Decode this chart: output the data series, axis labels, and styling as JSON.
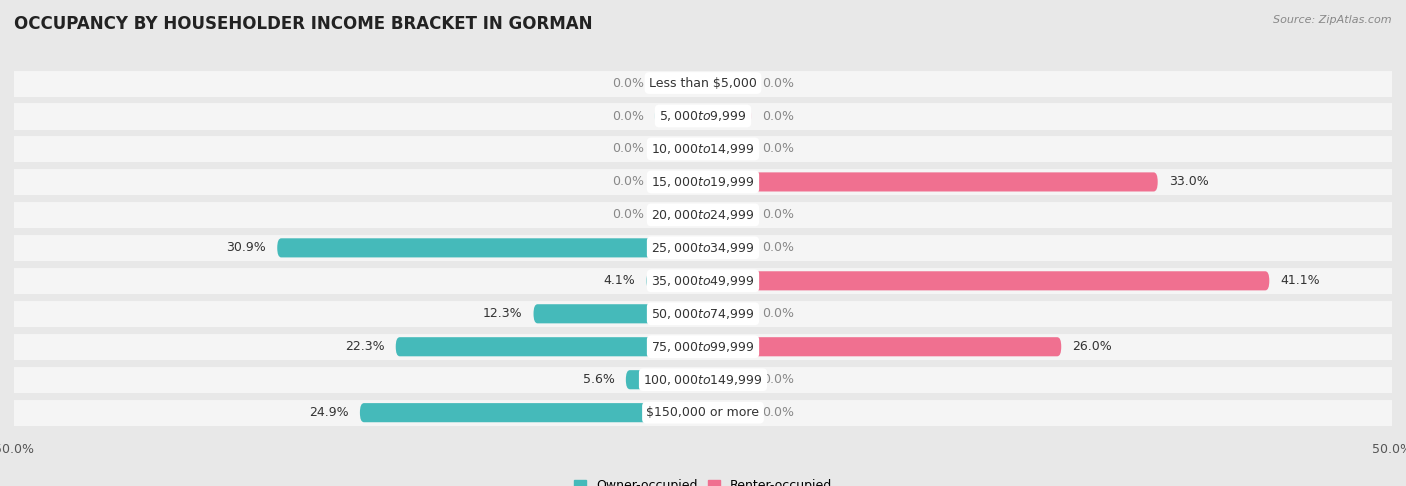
{
  "title": "OCCUPANCY BY HOUSEHOLDER INCOME BRACKET IN GORMAN",
  "source": "Source: ZipAtlas.com",
  "categories": [
    "Less than $5,000",
    "$5,000 to $9,999",
    "$10,000 to $14,999",
    "$15,000 to $19,999",
    "$20,000 to $24,999",
    "$25,000 to $34,999",
    "$35,000 to $49,999",
    "$50,000 to $74,999",
    "$75,000 to $99,999",
    "$100,000 to $149,999",
    "$150,000 or more"
  ],
  "owner": [
    0.0,
    0.0,
    0.0,
    0.0,
    0.0,
    30.9,
    4.1,
    12.3,
    22.3,
    5.6,
    24.9
  ],
  "renter": [
    0.0,
    0.0,
    0.0,
    33.0,
    0.0,
    0.0,
    41.1,
    0.0,
    26.0,
    0.0,
    0.0
  ],
  "owner_color": "#45BABA",
  "renter_color": "#F07090",
  "owner_color_light": "#A8DEDE",
  "renter_color_light": "#F8B8CC",
  "bg_color": "#e8e8e8",
  "row_bg_color": "#f5f5f5",
  "xlim": 50.0,
  "label_fontsize": 9.0,
  "title_fontsize": 12,
  "axis_fontsize": 9.0,
  "stub_value": 3.5
}
